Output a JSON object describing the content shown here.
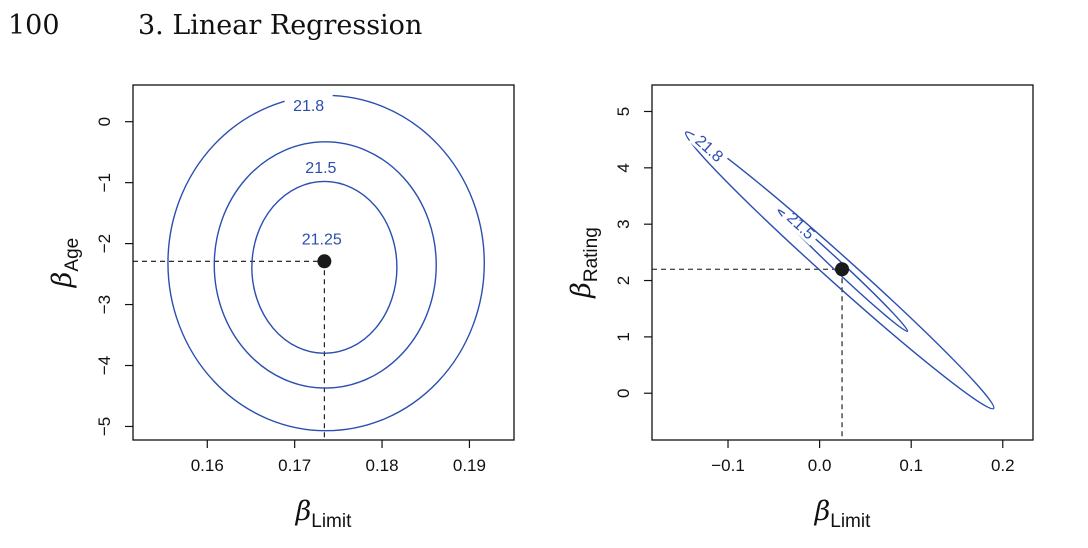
{
  "header": {
    "page_number": "100",
    "chapter_title": "3. Linear Regression"
  },
  "colors": {
    "contour": "#2a4fb0",
    "ink": "#111111",
    "background": "#ffffff"
  },
  "chart_data": [
    {
      "type": "contour",
      "xlabel": "β_Limit",
      "ylabel": "β_Age",
      "xticks": [
        "0.16",
        "0.17",
        "0.18",
        "0.19"
      ],
      "xtick_values": [
        0.16,
        0.17,
        0.18,
        0.19
      ],
      "yticks": [
        "0",
        "−1",
        "−2",
        "−3",
        "−4",
        "−5"
      ],
      "ytick_values": [
        0,
        -1,
        -2,
        -3,
        -4,
        -5
      ],
      "xlim": [
        0.1515,
        0.1951
      ],
      "ylim": [
        -5.222,
        0.602
      ],
      "minimum": {
        "x": 0.1734,
        "y": -2.29
      },
      "contours": [
        {
          "level": "21.25",
          "center": [
            0.1734,
            -2.39
          ],
          "rx": 0.0083,
          "ry": 1.41,
          "label_pos": [
            0.1731,
            -1.92
          ]
        },
        {
          "level": "21.5",
          "center": [
            0.1735,
            -2.35
          ],
          "rx": 0.0127,
          "ry": 2.02,
          "label_pos": [
            0.173,
            -0.74
          ]
        },
        {
          "level": "21.8",
          "center": [
            0.1736,
            -2.32
          ],
          "rx": 0.0181,
          "ry": 2.75,
          "label_pos": [
            0.1716,
            0.27
          ]
        }
      ]
    },
    {
      "type": "contour",
      "xlabel": "β_Limit",
      "ylabel": "β_Rating",
      "xticks": [
        "−0.1",
        "0.0",
        "0.1",
        "0.2"
      ],
      "xtick_values": [
        -0.1,
        0.0,
        0.1,
        0.2
      ],
      "yticks": [
        "0",
        "1",
        "2",
        "3",
        "4",
        "5"
      ],
      "ytick_values": [
        0,
        1,
        2,
        3,
        4,
        5
      ],
      "xlim": [
        -0.183,
        0.233
      ],
      "ylim": [
        -0.83,
        5.47
      ],
      "minimum": {
        "x": 0.0245,
        "y": 2.2
      },
      "contours": [
        {
          "level": "21.5",
          "center": [
            0.0255,
            2.18
          ],
          "end1": [
            -0.045,
            3.25
          ],
          "end2": [
            0.096,
            1.1
          ],
          "halfwidth": 0.03,
          "label_pos": [
            -0.02,
            2.98
          ]
        },
        {
          "level": "21.8",
          "center": [
            0.0245,
            2.2
          ],
          "end1": [
            -0.146,
            4.63
          ],
          "end2": [
            0.19,
            -0.27
          ],
          "halfwidth": 0.08,
          "label_pos": [
            -0.12,
            4.35
          ]
        }
      ]
    }
  ]
}
